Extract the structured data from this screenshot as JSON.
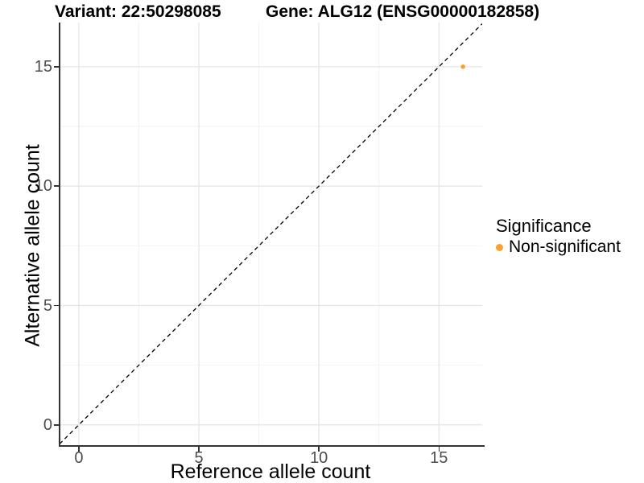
{
  "title": {
    "variant": "Variant: 22:50298085",
    "gene": "Gene: ALG12 (ENSG00000182858)"
  },
  "chart_data": {
    "type": "scatter",
    "title_left": "Variant: 22:50298085",
    "title_right": "Gene: ALG12 (ENSG00000182858)",
    "xlabel": "Reference allele count",
    "ylabel": "Alternative allele count",
    "xlim": [
      -0.8,
      16.8
    ],
    "ylim": [
      -0.85,
      16.85
    ],
    "xticks": [
      0,
      5,
      10,
      15
    ],
    "yticks": [
      0,
      5,
      10,
      15
    ],
    "x_minor_gridlines": [
      2.5,
      7.5,
      12.5
    ],
    "y_minor_gridlines": [
      2.5,
      7.5,
      12.5
    ],
    "grid": "on",
    "legend_position": "right",
    "reference_line": {
      "slope": 1,
      "intercept": 0,
      "style": "dashed",
      "color": "#000000"
    },
    "series": [
      {
        "name": "Non-significant",
        "color": "#F9A32C",
        "points": [
          [
            16,
            15
          ]
        ],
        "point_radius": 2.8
      }
    ],
    "legend": {
      "title": "Significance",
      "entries": [
        {
          "label": "Non-significant",
          "color": "#F9A32C"
        }
      ]
    }
  },
  "colors": {
    "background": "#FFFFFF",
    "axis_line": "#333333",
    "tick_label": "#4D4D4D",
    "grid_major": "#E5E5E5",
    "grid_minor": "#F2F2F2",
    "point": "#F9A32C",
    "reference_line": "#000000"
  }
}
